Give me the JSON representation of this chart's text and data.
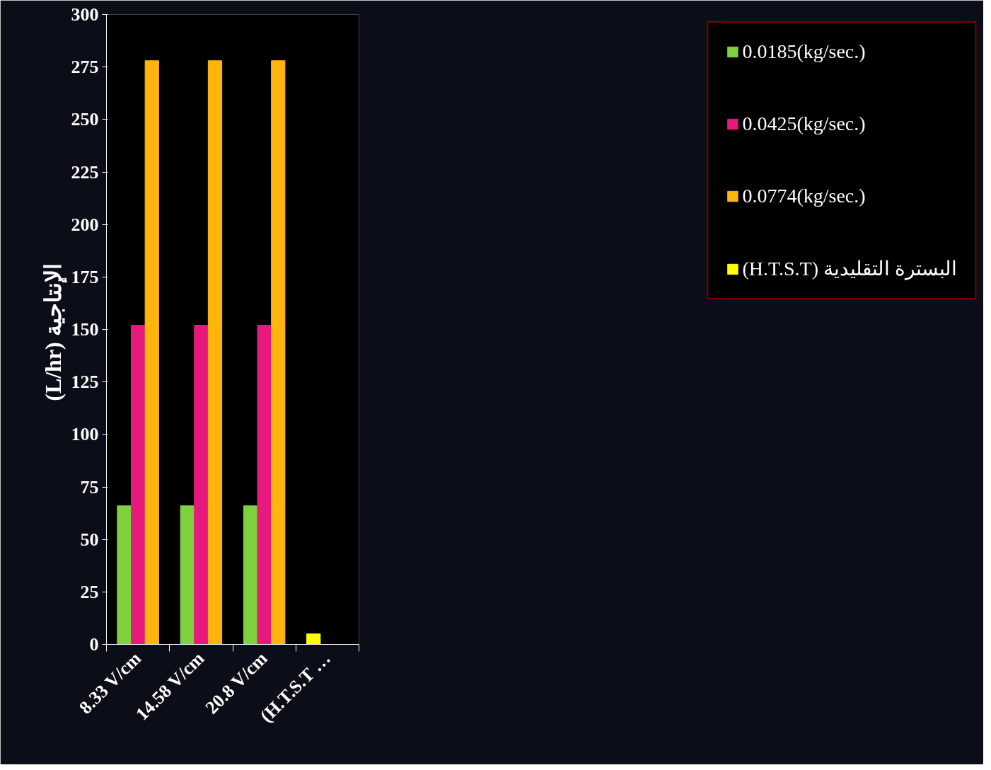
{
  "chart_data": {
    "type": "bar",
    "ylabel": "(L/hr)  الإنتاجية",
    "categories": [
      "8.33 V/cm",
      "14.58 V/cm",
      "20.8 V/cm",
      "(H.T.S.T …"
    ],
    "series": [
      {
        "name": "0.0185(kg/sec.)",
        "color": "#7ed03e",
        "values": [
          66,
          66,
          66,
          null
        ]
      },
      {
        "name": "0.0425(kg/sec.)",
        "color": "#e8197d",
        "values": [
          152,
          152,
          152,
          null
        ]
      },
      {
        "name": "0.0774(kg/sec.)",
        "color": "#ffb50e",
        "values": [
          278,
          278,
          278,
          null
        ]
      },
      {
        "name": "(H.T.S.T) البسترة التقليدية",
        "color": "#ffff00",
        "values": [
          null,
          null,
          null,
          5
        ]
      }
    ],
    "ylim": [
      0,
      300
    ],
    "yticks": [
      0,
      25,
      50,
      75,
      100,
      125,
      150,
      175,
      200,
      225,
      250,
      275,
      300
    ],
    "grid": false,
    "legend": "right"
  }
}
